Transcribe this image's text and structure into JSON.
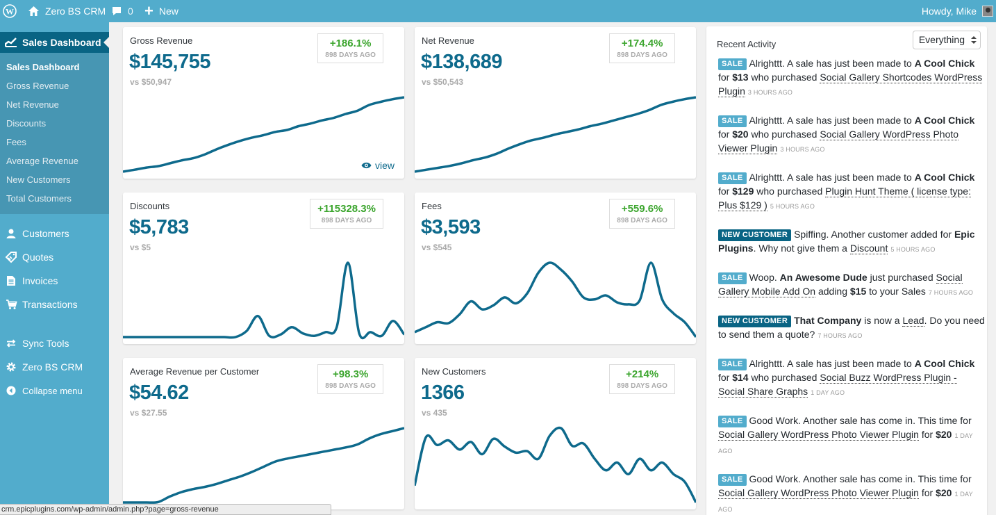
{
  "adminbar": {
    "site_name": "Zero BS CRM",
    "comments_count": "0",
    "new_label": "New",
    "howdy": "Howdy, Mike"
  },
  "sidebar": {
    "current_label": "Sales Dashboard",
    "sub_items": [
      {
        "label": "Sales Dashboard",
        "active": true
      },
      {
        "label": "Gross Revenue"
      },
      {
        "label": "Net Revenue"
      },
      {
        "label": "Discounts"
      },
      {
        "label": "Fees"
      },
      {
        "label": "Average Revenue"
      },
      {
        "label": "New Customers"
      },
      {
        "label": "Total Customers"
      }
    ],
    "items": [
      {
        "label": "Customers",
        "icon": "user-icon"
      },
      {
        "label": "Quotes",
        "icon": "tag-icon"
      },
      {
        "label": "Invoices",
        "icon": "document-icon"
      },
      {
        "label": "Transactions",
        "icon": "cart-icon"
      },
      {
        "label": "Sync Tools",
        "icon": "sync-icon"
      },
      {
        "label": "Zero BS CRM",
        "icon": "gear-icon"
      },
      {
        "label": "Collapse menu",
        "icon": "collapse-icon"
      }
    ]
  },
  "cards": [
    {
      "title": "Gross Revenue",
      "value": "$145,755",
      "vs": "vs $50,947",
      "pct": "+186.1%",
      "ago": "898 DAYS AGO",
      "view": "view",
      "series": [
        0,
        1.5,
        3.2,
        4.3,
        6.5,
        8.8,
        10.5,
        13.5,
        17.5,
        21,
        24,
        26.5,
        28.5,
        31,
        32.5,
        35.5,
        37.5,
        40,
        42,
        45,
        47.5,
        52,
        54.5,
        56.5,
        58
      ]
    },
    {
      "title": "Net Revenue",
      "value": "$138,689",
      "vs": "vs $50,543",
      "pct": "+174.4%",
      "ago": "898 DAYS AGO",
      "series": [
        0,
        1.5,
        3,
        4.5,
        6.5,
        9,
        11,
        14,
        18,
        21.5,
        24.5,
        26.5,
        29,
        31,
        33,
        35.5,
        37.5,
        40,
        42.5,
        45,
        48,
        52,
        54.5,
        56.5,
        58
      ]
    },
    {
      "title": "Discounts",
      "value": "$5,783",
      "vs": "vs $5",
      "pct": "+115328.3%",
      "ago": "898 DAYS AGO",
      "series": [
        0,
        0,
        0,
        0,
        0,
        0,
        0,
        0,
        0,
        0,
        0,
        5,
        17,
        1,
        2,
        8,
        3,
        1,
        4,
        8,
        60,
        3,
        4,
        1,
        13,
        2
      ]
    },
    {
      "title": "Fees",
      "value": "$3,593",
      "vs": "vs $545",
      "pct": "+559.6%",
      "ago": "898 DAYS AGO",
      "series": [
        5,
        10,
        15,
        14,
        23,
        36,
        28,
        32,
        40,
        34,
        44,
        65,
        75,
        68,
        56,
        40,
        38,
        42,
        35,
        33,
        37,
        75,
        38,
        24,
        15,
        0
      ]
    },
    {
      "title": "Average Revenue per Customer",
      "value": "$54.62",
      "vs": "vs $27.55",
      "pct": "+98.3%",
      "ago": "898 DAYS AGO",
      "series": [
        0,
        0,
        0,
        0.3,
        4,
        7,
        9,
        10.5,
        12.5,
        15,
        17.5,
        20.5,
        24,
        27.5,
        29.5,
        31,
        32.5,
        34,
        35.5,
        37,
        39,
        43,
        46,
        48,
        50
      ]
    },
    {
      "title": "New Customers",
      "value": "1366",
      "vs": "vs 435",
      "pct": "+214%",
      "ago": "898 DAYS AGO",
      "series": [
        25,
        88,
        78,
        84,
        72,
        82,
        66,
        86,
        76,
        68,
        70,
        60,
        90,
        100,
        77,
        80,
        60,
        45,
        55,
        40,
        60,
        45,
        55,
        40,
        30,
        3
      ]
    }
  ],
  "activity": {
    "title": "Recent Activity",
    "filter": "Everything",
    "items": [
      {
        "label": "SALE",
        "type": "sale",
        "parts": [
          [
            "Alrighttt. A sale has just been made to ",
            ""
          ],
          [
            "A Cool Chick",
            "b"
          ],
          [
            " for ",
            ""
          ],
          [
            "$13",
            "b"
          ],
          [
            " who purchased ",
            ""
          ],
          [
            "Social Gallery Shortcodes WordPress Plugin",
            "link"
          ]
        ],
        "time": "3 HOURS AGO"
      },
      {
        "label": "SALE",
        "type": "sale",
        "parts": [
          [
            "Alrighttt. A sale has just been made to ",
            ""
          ],
          [
            "A Cool Chick",
            "b"
          ],
          [
            " for ",
            ""
          ],
          [
            "$20",
            "b"
          ],
          [
            " who purchased ",
            ""
          ],
          [
            "Social Gallery WordPress Photo Viewer Plugin",
            "link"
          ]
        ],
        "time": "3 HOURS AGO"
      },
      {
        "label": "SALE",
        "type": "sale",
        "parts": [
          [
            "Alrighttt. A sale has just been made to ",
            ""
          ],
          [
            "A Cool Chick",
            "b"
          ],
          [
            " for ",
            ""
          ],
          [
            "$129",
            "b"
          ],
          [
            " who purchased ",
            ""
          ],
          [
            "Plugin Hunt Theme ( license type: Plus $129 )",
            "link"
          ]
        ],
        "time": "5 HOURS AGO"
      },
      {
        "label": "NEW CUSTOMER",
        "type": "newc",
        "parts": [
          [
            "Spiffing. Another customer added for ",
            ""
          ],
          [
            "Epic Plugins",
            "b"
          ],
          [
            ". Why not give them a ",
            ""
          ],
          [
            "Discount",
            "link"
          ]
        ],
        "time": "5 HOURS AGO"
      },
      {
        "label": "SALE",
        "type": "sale",
        "parts": [
          [
            "Woop. ",
            ""
          ],
          [
            "An Awesome Dude",
            "b"
          ],
          [
            " just purchased ",
            ""
          ],
          [
            "Social Gallery Mobile Add On",
            "link"
          ],
          [
            " adding ",
            ""
          ],
          [
            "$15",
            "b"
          ],
          [
            " to your Sales",
            ""
          ]
        ],
        "time": "7 HOURS AGO"
      },
      {
        "label": "NEW CUSTOMER",
        "type": "newc",
        "parts": [
          [
            "That Company",
            "b"
          ],
          [
            " is now a ",
            ""
          ],
          [
            "Lead",
            "link"
          ],
          [
            ". Do you need to send them a quote?",
            ""
          ]
        ],
        "time": "7 HOURS AGO"
      },
      {
        "label": "SALE",
        "type": "sale",
        "parts": [
          [
            "Alrighttt. A sale has just been made to ",
            ""
          ],
          [
            "A Cool Chick",
            "b"
          ],
          [
            " for ",
            ""
          ],
          [
            "$14",
            "b"
          ],
          [
            " who purchased ",
            ""
          ],
          [
            "Social Buzz WordPress Plugin - Social Share Graphs",
            "link"
          ]
        ],
        "time": "1 DAY AGO"
      },
      {
        "label": "SALE",
        "type": "sale",
        "parts": [
          [
            "Good Work. Another sale has come in. This time for ",
            ""
          ],
          [
            "Social Gallery WordPress Photo Viewer Plugin",
            "link"
          ],
          [
            " for ",
            ""
          ],
          [
            "$20",
            "b"
          ]
        ],
        "time": "1 DAY AGO"
      },
      {
        "label": "SALE",
        "type": "sale",
        "parts": [
          [
            "Good Work. Another sale has come in. This time for ",
            ""
          ],
          [
            "Social Gallery WordPress Photo Viewer Plugin",
            "link"
          ],
          [
            " for ",
            ""
          ],
          [
            "$20",
            "b"
          ]
        ],
        "time": "1 DAY AGO"
      }
    ]
  },
  "statusbar": {
    "url": "crm.epicplugins.com/wp-admin/admin.php?page=gross-revenue"
  },
  "colors": {
    "accent": "#52accc",
    "current": "#096484",
    "value": "#0e6a8c",
    "positive": "#3ba52d"
  }
}
